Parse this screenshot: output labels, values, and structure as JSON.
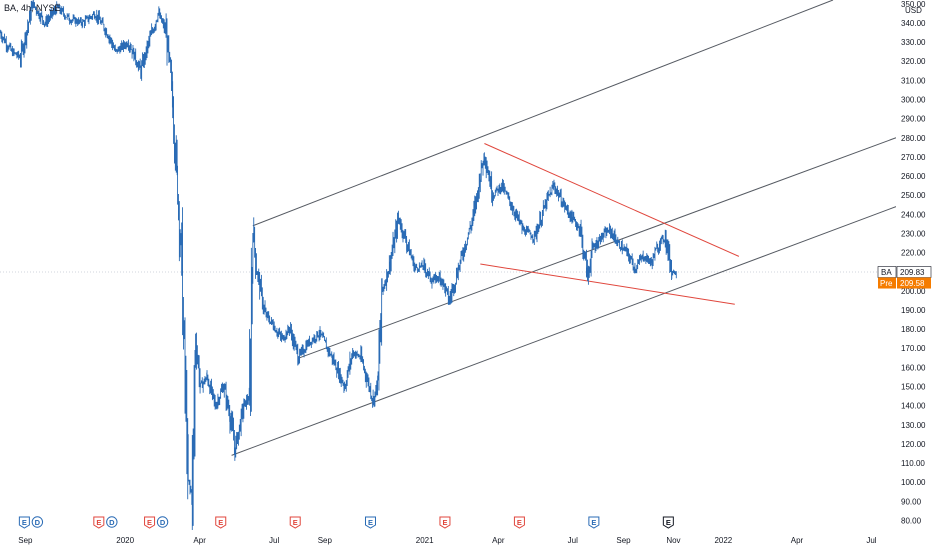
{
  "header": {
    "symbol_line": "BA, 4h, NYSE"
  },
  "colors": {
    "candle": "#2a6bb5",
    "channel": "#555a62",
    "wedge": "#e0463c",
    "earnings": "#e0463c",
    "dividend": "#2a6bb5",
    "split": "#26a69a",
    "last_price_bg": "#ffffff",
    "pre_bg": "#f57c00"
  },
  "chart_data": {
    "type": "line",
    "title": "",
    "xlabel": "",
    "ylabel": "",
    "currency": "USD",
    "ylim": [
      75,
      352
    ],
    "y_ticks": [
      80,
      90,
      100,
      110,
      120,
      130,
      140,
      150,
      160,
      170,
      180,
      190,
      200,
      210,
      220,
      230,
      240,
      250,
      260,
      270,
      280,
      290,
      300,
      310,
      320,
      330,
      340,
      350
    ],
    "y_tick_labels": [
      "80.00",
      "90.00",
      "100.00",
      "110.00",
      "120.00",
      "130.00",
      "140.00",
      "150.00",
      "160.00",
      "170.00",
      "180.00",
      "190.00",
      "200.00",
      "210.00",
      "220.00",
      "230.00",
      "240.00",
      "250.00",
      "260.00",
      "270.00",
      "280.00",
      "290.00",
      "300.00",
      "310.00",
      "320.00",
      "330.00",
      "340.00",
      "350.00"
    ],
    "x_range": [
      "2019-08-01",
      "2022-07-31"
    ],
    "x_ticks": [
      {
        "label": "Sep",
        "date": "2019-09-01"
      },
      {
        "label": "2020",
        "date": "2020-01-01"
      },
      {
        "label": "Apr",
        "date": "2020-04-01"
      },
      {
        "label": "Jul",
        "date": "2020-07-01"
      },
      {
        "label": "Sep",
        "date": "2020-09-01"
      },
      {
        "label": "2021",
        "date": "2021-01-01"
      },
      {
        "label": "Apr",
        "date": "2021-04-01"
      },
      {
        "label": "Jul",
        "date": "2021-07-01"
      },
      {
        "label": "Sep",
        "date": "2021-09-01"
      },
      {
        "label": "Nov",
        "date": "2021-11-01"
      },
      {
        "label": "2022",
        "date": "2022-01-01"
      },
      {
        "label": "Apr",
        "date": "2022-04-01"
      },
      {
        "label": "Jul",
        "date": "2022-07-01"
      }
    ],
    "series": [
      {
        "points": [
          [
            "2019-08-01",
            335
          ],
          [
            "2019-08-15",
            325
          ],
          [
            "2019-08-26",
            322
          ],
          [
            "2019-09-10",
            350
          ],
          [
            "2019-09-25",
            340
          ],
          [
            "2019-10-10",
            348
          ],
          [
            "2019-10-25",
            342
          ],
          [
            "2019-11-10",
            340
          ],
          [
            "2019-11-25",
            345
          ],
          [
            "2019-12-10",
            335
          ],
          [
            "2019-12-20",
            325
          ],
          [
            "2020-01-05",
            330
          ],
          [
            "2020-01-20",
            315
          ],
          [
            "2020-01-30",
            330
          ],
          [
            "2020-02-10",
            345
          ],
          [
            "2020-02-20",
            335
          ],
          [
            "2020-02-28",
            300
          ],
          [
            "2020-03-05",
            255
          ],
          [
            "2020-03-10",
            215
          ],
          [
            "2020-03-13",
            165
          ],
          [
            "2020-03-18",
            100
          ],
          [
            "2020-03-23",
            92
          ],
          [
            "2020-03-27",
            175
          ],
          [
            "2020-04-02",
            150
          ],
          [
            "2020-04-10",
            155
          ],
          [
            "2020-04-20",
            140
          ],
          [
            "2020-04-30",
            150
          ],
          [
            "2020-05-08",
            135
          ],
          [
            "2020-05-14",
            117
          ],
          [
            "2020-05-25",
            140
          ],
          [
            "2020-06-01",
            145
          ],
          [
            "2020-06-05",
            232
          ],
          [
            "2020-06-10",
            210
          ],
          [
            "2020-06-20",
            188
          ],
          [
            "2020-06-30",
            182
          ],
          [
            "2020-07-10",
            175
          ],
          [
            "2020-07-20",
            180
          ],
          [
            "2020-07-31",
            165
          ],
          [
            "2020-08-10",
            172
          ],
          [
            "2020-08-25",
            178
          ],
          [
            "2020-09-10",
            165
          ],
          [
            "2020-09-25",
            150
          ],
          [
            "2020-10-05",
            168
          ],
          [
            "2020-10-15",
            165
          ],
          [
            "2020-10-30",
            143
          ],
          [
            "2020-11-05",
            153
          ],
          [
            "2020-11-10",
            200
          ],
          [
            "2020-11-20",
            215
          ],
          [
            "2020-11-30",
            238
          ],
          [
            "2020-12-10",
            225
          ],
          [
            "2020-12-20",
            212
          ],
          [
            "2020-12-31",
            213
          ],
          [
            "2021-01-10",
            205
          ],
          [
            "2021-01-20",
            208
          ],
          [
            "2021-01-31",
            195
          ],
          [
            "2021-02-10",
            210
          ],
          [
            "2021-02-20",
            225
          ],
          [
            "2021-03-01",
            238
          ],
          [
            "2021-03-10",
            260
          ],
          [
            "2021-03-15",
            272
          ],
          [
            "2021-03-25",
            250
          ],
          [
            "2021-04-05",
            255
          ],
          [
            "2021-04-20",
            242
          ],
          [
            "2021-05-01",
            232
          ],
          [
            "2021-05-15",
            228
          ],
          [
            "2021-05-31",
            248
          ],
          [
            "2021-06-08",
            255
          ],
          [
            "2021-06-20",
            245
          ],
          [
            "2021-06-30",
            238
          ],
          [
            "2021-07-10",
            232
          ],
          [
            "2021-07-19",
            208
          ],
          [
            "2021-07-25",
            222
          ],
          [
            "2021-08-05",
            228
          ],
          [
            "2021-08-15",
            232
          ],
          [
            "2021-08-25",
            225
          ],
          [
            "2021-09-05",
            220
          ],
          [
            "2021-09-15",
            212
          ],
          [
            "2021-09-25",
            218
          ],
          [
            "2021-10-05",
            215
          ],
          [
            "2021-10-15",
            225
          ],
          [
            "2021-10-22",
            228
          ],
          [
            "2021-10-30",
            210
          ],
          [
            "2021-11-05",
            209.83
          ]
        ]
      }
    ],
    "last_price": {
      "symbol": "BA",
      "value": "209.83"
    },
    "pre_market": {
      "label": "Pre",
      "value": "209.58"
    },
    "events": [
      {
        "date": "2019-09-01",
        "glyphs": [
          "E",
          "D"
        ],
        "colors": [
          "dividend",
          "dividend"
        ]
      },
      {
        "date": "2019-12-01",
        "glyphs": [
          "E",
          "D"
        ],
        "colors": [
          "earnings",
          "dividend"
        ]
      },
      {
        "date": "2020-02-01",
        "glyphs": [
          "E",
          "D"
        ],
        "colors": [
          "earnings",
          "dividend"
        ]
      },
      {
        "date": "2020-04-28",
        "glyphs": [
          "E"
        ],
        "colors": [
          "earnings"
        ]
      },
      {
        "date": "2020-07-28",
        "glyphs": [
          "E"
        ],
        "colors": [
          "earnings"
        ]
      },
      {
        "date": "2020-10-28",
        "glyphs": [
          "E"
        ],
        "colors": [
          "dividend"
        ]
      },
      {
        "date": "2021-01-27",
        "glyphs": [
          "E"
        ],
        "colors": [
          "earnings"
        ]
      },
      {
        "date": "2021-04-28",
        "glyphs": [
          "E"
        ],
        "colors": [
          "earnings"
        ]
      },
      {
        "date": "2021-07-28",
        "glyphs": [
          "E"
        ],
        "colors": [
          "dividend"
        ]
      },
      {
        "date": "2021-10-27",
        "glyphs": [
          "E"
        ],
        "colors": [
          "neutral"
        ]
      }
    ],
    "trendlines": [
      {
        "name": "channel-upper",
        "kind": "channel",
        "from": [
          "2020-06-05",
          234
        ],
        "to": [
          "2022-05-15",
          352
        ]
      },
      {
        "name": "channel-middle",
        "kind": "channel",
        "from": [
          "2020-08-01",
          165
        ],
        "to": [
          "2022-07-31",
          280
        ]
      },
      {
        "name": "channel-lower",
        "kind": "channel",
        "from": [
          "2020-05-10",
          114
        ],
        "to": [
          "2022-07-31",
          244
        ]
      },
      {
        "name": "wedge-top",
        "kind": "wedge",
        "from": [
          "2021-03-15",
          277
        ],
        "to": [
          "2022-01-20",
          218
        ]
      },
      {
        "name": "wedge-bottom",
        "kind": "wedge",
        "from": [
          "2021-03-10",
          214
        ],
        "to": [
          "2022-01-15",
          193
        ]
      }
    ]
  }
}
